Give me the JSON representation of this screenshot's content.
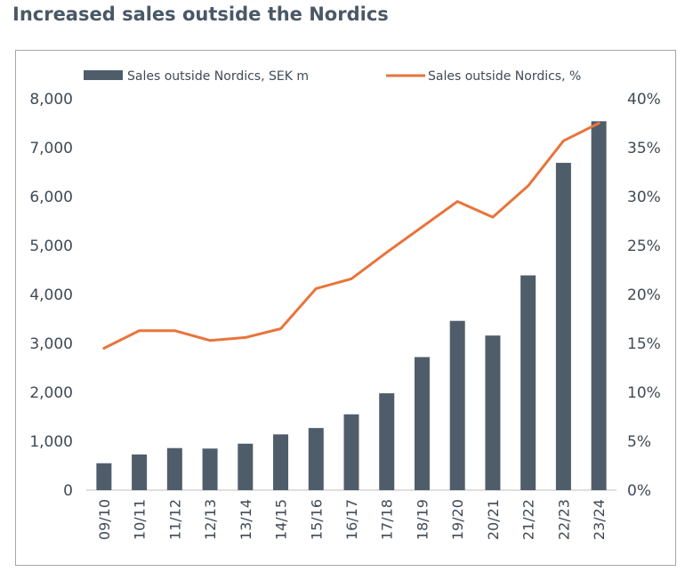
{
  "title": "Increased sales outside the Nordics",
  "colors": {
    "bar": "#4f5d6b",
    "line": "#e8743b",
    "title": "#4a5866",
    "axis_text": "#3f4a55",
    "frame": "#a6a6a6"
  },
  "chart_data": {
    "type": "bar",
    "categories": [
      "09/10",
      "10/11",
      "11/12",
      "12/13",
      "13/14",
      "14/15",
      "15/16",
      "16/17",
      "17/18",
      "18/19",
      "19/20",
      "20/21",
      "21/22",
      "22/23",
      "23/24"
    ],
    "series": [
      {
        "name": "Sales outside Nordics, SEK m",
        "type": "bar",
        "axis": "left",
        "values": [
          550,
          730,
          860,
          850,
          950,
          1140,
          1270,
          1550,
          1980,
          2720,
          3460,
          3160,
          4390,
          6690,
          7540
        ]
      },
      {
        "name": "Sales outside Nordics, %",
        "type": "line",
        "axis": "right",
        "values": [
          14.5,
          16.3,
          16.3,
          15.3,
          15.6,
          16.5,
          20.6,
          21.6,
          24.3,
          26.9,
          29.5,
          27.9,
          31.1,
          35.7,
          37.5
        ]
      }
    ],
    "y_left": {
      "range": [
        0,
        8000
      ],
      "ticks": [
        "0",
        "1,000",
        "2,000",
        "3,000",
        "4,000",
        "5,000",
        "6,000",
        "7,000",
        "8,000"
      ]
    },
    "y_right": {
      "range": [
        0,
        40
      ],
      "ticks": [
        "0%",
        "5%",
        "10%",
        "15%",
        "20%",
        "25%",
        "30%",
        "35%",
        "40%"
      ]
    },
    "grid": false,
    "legend_position": "top"
  }
}
